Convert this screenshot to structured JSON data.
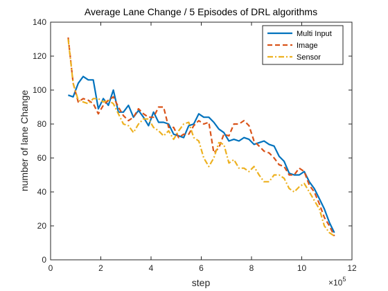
{
  "chart_data": {
    "type": "line",
    "title": "Average Lane Change / 5 Episodes of DRL algorithms",
    "xlabel": "step",
    "ylabel": "number of lane Change",
    "x_exponent_base": "×10",
    "x_exponent_power": "5",
    "xlim": [
      0,
      12
    ],
    "ylim": [
      0,
      140
    ],
    "xticks": [
      0,
      2,
      4,
      6,
      8,
      10,
      12
    ],
    "yticks": [
      0,
      20,
      40,
      60,
      80,
      100,
      120,
      140
    ],
    "legend_position": "top-right",
    "series": [
      {
        "name": "Multi Input",
        "color": "#0072BD",
        "style": "solid",
        "x": [
          0.7,
          0.9,
          1.1,
          1.3,
          1.5,
          1.7,
          1.9,
          2.1,
          2.3,
          2.5,
          2.7,
          2.9,
          3.1,
          3.3,
          3.5,
          3.7,
          3.9,
          4.1,
          4.3,
          4.5,
          4.7,
          4.9,
          5.1,
          5.3,
          5.5,
          5.7,
          5.9,
          6.1,
          6.3,
          6.5,
          6.7,
          6.9,
          7.1,
          7.3,
          7.5,
          7.7,
          7.9,
          8.1,
          8.3,
          8.5,
          8.7,
          8.9,
          9.1,
          9.3,
          9.5,
          9.7,
          9.9,
          10.1,
          10.3,
          10.5,
          10.7,
          10.9,
          11.1,
          11.3
        ],
        "y": [
          97,
          96,
          104,
          108,
          106,
          106,
          89,
          95,
          91,
          100,
          87,
          87,
          91,
          84,
          88,
          84,
          79,
          87,
          81,
          81,
          80,
          74,
          73,
          72,
          79,
          80,
          86,
          84,
          84,
          81,
          77,
          75,
          70,
          71,
          70,
          72,
          71,
          68,
          69,
          70,
          68,
          67,
          61,
          58,
          51,
          50,
          50,
          52,
          46,
          42,
          36,
          30,
          22,
          16
        ]
      },
      {
        "name": "Image",
        "color": "#D95319",
        "style": "dashed",
        "x": [
          0.7,
          0.9,
          1.1,
          1.3,
          1.5,
          1.7,
          1.9,
          2.1,
          2.3,
          2.5,
          2.7,
          2.9,
          3.1,
          3.3,
          3.5,
          3.7,
          3.9,
          4.1,
          4.3,
          4.5,
          4.7,
          4.9,
          5.1,
          5.3,
          5.5,
          5.7,
          5.9,
          6.1,
          6.3,
          6.5,
          6.7,
          6.9,
          7.1,
          7.3,
          7.5,
          7.7,
          7.9,
          8.1,
          8.3,
          8.5,
          8.7,
          8.9,
          9.1,
          9.3,
          9.5,
          9.7,
          9.9,
          10.1,
          10.3,
          10.5,
          10.7,
          10.9,
          11.1,
          11.3
        ],
        "y": [
          131,
          104,
          93,
          95,
          94,
          92,
          86,
          91,
          94,
          96,
          90,
          85,
          82,
          84,
          89,
          86,
          84,
          84,
          90,
          90,
          78,
          78,
          72,
          74,
          74,
          79,
          82,
          80,
          81,
          63,
          66,
          74,
          73,
          80,
          80,
          82,
          79,
          70,
          67,
          64,
          63,
          60,
          56,
          55,
          50,
          50,
          54,
          52,
          44,
          40,
          33,
          25,
          20,
          14
        ]
      },
      {
        "name": "Sensor",
        "color": "#EDB120",
        "style": "dashdot",
        "x": [
          0.7,
          0.9,
          1.1,
          1.3,
          1.5,
          1.7,
          1.9,
          2.1,
          2.3,
          2.5,
          2.7,
          2.9,
          3.1,
          3.3,
          3.5,
          3.7,
          3.9,
          4.1,
          4.3,
          4.5,
          4.7,
          4.9,
          5.1,
          5.3,
          5.5,
          5.7,
          5.9,
          6.1,
          6.3,
          6.5,
          6.7,
          6.9,
          7.1,
          7.3,
          7.5,
          7.7,
          7.9,
          8.1,
          8.3,
          8.5,
          8.7,
          8.9,
          9.1,
          9.3,
          9.5,
          9.7,
          9.9,
          10.1,
          10.3,
          10.5,
          10.7,
          10.9,
          11.1,
          11.3
        ],
        "y": [
          130,
          104,
          94,
          93,
          92,
          95,
          95,
          93,
          94,
          92,
          86,
          80,
          79,
          75,
          80,
          83,
          83,
          78,
          76,
          73,
          76,
          71,
          76,
          80,
          81,
          72,
          70,
          60,
          55,
          60,
          69,
          68,
          57,
          59,
          54,
          54,
          52,
          55,
          50,
          46,
          46,
          50,
          50,
          48,
          42,
          40,
          43,
          45,
          40,
          35,
          30,
          20,
          16,
          14
        ]
      }
    ]
  }
}
